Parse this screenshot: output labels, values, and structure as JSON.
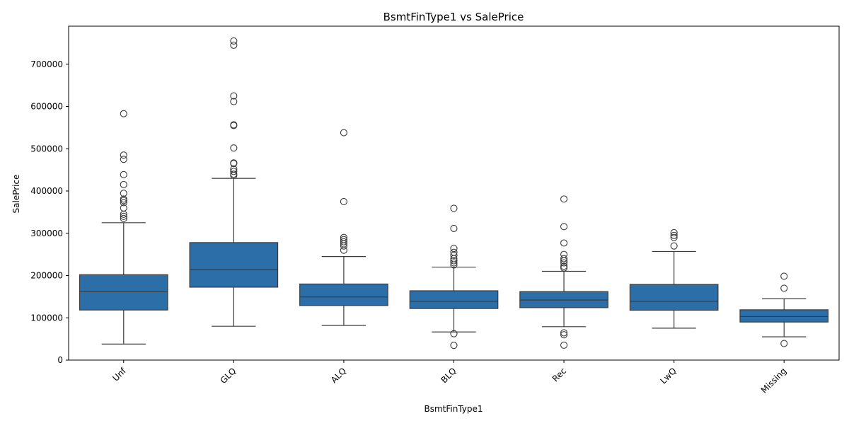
{
  "chart_data": {
    "type": "box",
    "title": "BsmtFinType1 vs SalePrice",
    "xlabel": "BsmtFinType1",
    "ylabel": "SalePrice",
    "ylim": [
      0,
      790000
    ],
    "yticks": [
      0,
      100000,
      200000,
      300000,
      400000,
      500000,
      600000,
      700000
    ],
    "grid": false,
    "box_color": "#2c6fa8",
    "categories": [
      "Unf",
      "GLQ",
      "ALQ",
      "BLQ",
      "Rec",
      "LwQ",
      "Missing"
    ],
    "boxes": [
      {
        "category": "Unf",
        "whisker_low": 37900,
        "q1": 118500,
        "median": 162000,
        "q3": 202000,
        "whisker_high": 325000,
        "outliers": [
          582900,
          485000,
          475000,
          438780,
          415298,
          394617,
          381000,
          377500,
          372500,
          360000,
          345000,
          340000,
          335000
        ]
      },
      {
        "category": "GLQ",
        "whisker_low": 80000,
        "q1": 172500,
        "median": 214000,
        "q3": 278000,
        "whisker_high": 430000,
        "outliers": [
          755000,
          745000,
          625000,
          611657,
          556581,
          555000,
          501837,
          466500,
          465000,
          451950,
          446261,
          440000,
          437154
        ]
      },
      {
        "category": "ALQ",
        "whisker_low": 82000,
        "q1": 129000,
        "median": 149250,
        "q3": 180000,
        "whisker_high": 245000,
        "outliers": [
          538000,
          375000,
          290000,
          285000,
          280000,
          275000,
          270000,
          260000
        ]
      },
      {
        "category": "BLQ",
        "whisker_low": 66500,
        "q1": 122000,
        "median": 139000,
        "q3": 164000,
        "whisker_high": 220000,
        "outliers": [
          359100,
          311500,
          264132,
          255000,
          248000,
          240000,
          235000,
          230000,
          225000,
          62383,
          34900
        ]
      },
      {
        "category": "Rec",
        "whisker_low": 79000,
        "q1": 124000,
        "median": 142000,
        "q3": 162000,
        "whisker_high": 210000,
        "outliers": [
          381000,
          315750,
          277000,
          250000,
          240000,
          235000,
          230000,
          222000,
          218000,
          64500,
          60000,
          35311
        ]
      },
      {
        "category": "LwQ",
        "whisker_low": 75500,
        "q1": 118000,
        "median": 139000,
        "q3": 179000,
        "whisker_high": 257000,
        "outliers": [
          301500,
          295000,
          290000,
          270000
        ]
      },
      {
        "category": "Missing",
        "whisker_low": 55000,
        "q1": 90000,
        "median": 103000,
        "q3": 119000,
        "whisker_high": 145000,
        "outliers": [
          198500,
          169990,
          39300
        ]
      }
    ]
  }
}
